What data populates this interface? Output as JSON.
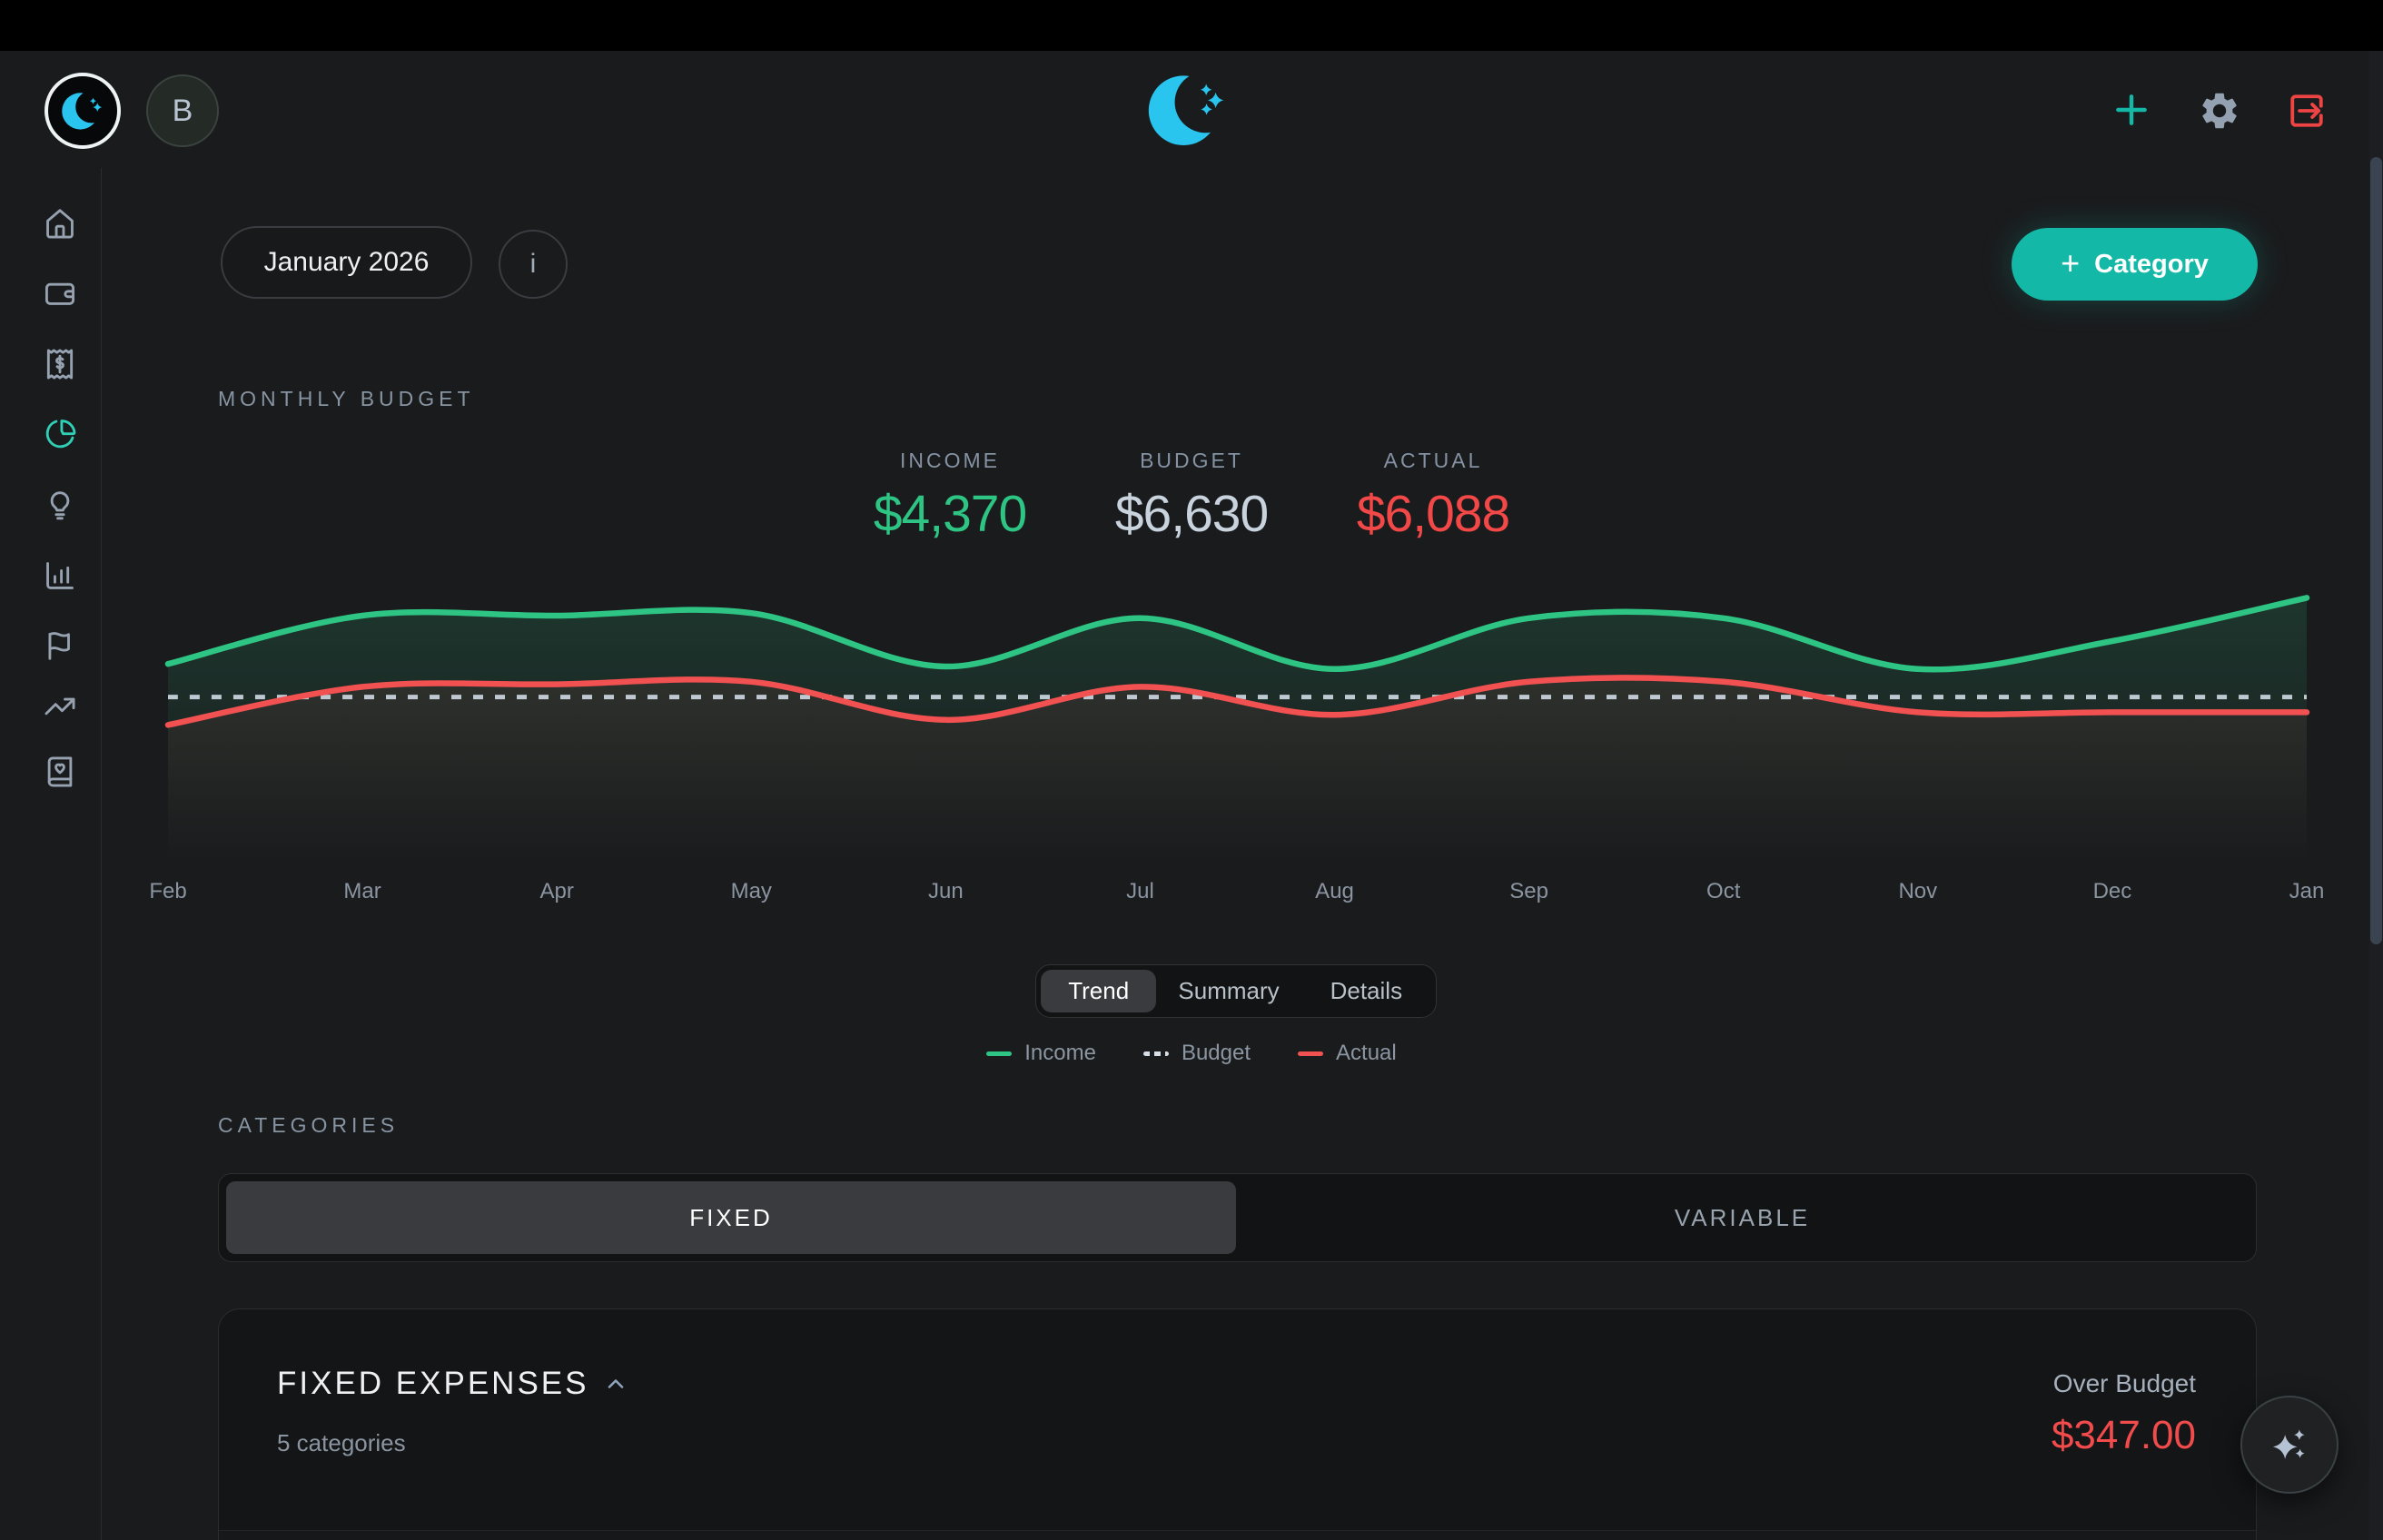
{
  "colors": {
    "accent_teal": "#14b8a6",
    "income_green": "#2ec584",
    "actual_red": "#f24848",
    "budget_gray": "#ccd6e0",
    "logo_cyan": "#29c5ef"
  },
  "topbar": {
    "logo_icon": "crescent-moon",
    "avatar_initial": "B",
    "actions": [
      {
        "icon": "plus"
      },
      {
        "icon": "gear"
      },
      {
        "icon": "logout"
      }
    ]
  },
  "sidebar": {
    "items": [
      {
        "icon": "home",
        "active": false
      },
      {
        "icon": "wallet",
        "active": false
      },
      {
        "icon": "receipt-dollar",
        "active": false
      },
      {
        "icon": "pie-chart",
        "active": true
      },
      {
        "icon": "lightbulb",
        "active": false
      },
      {
        "icon": "bar-chart",
        "active": false
      },
      {
        "icon": "flag",
        "active": false
      },
      {
        "icon": "trending-up",
        "active": false
      },
      {
        "icon": "book-heart",
        "active": false
      }
    ]
  },
  "toolbar": {
    "month_label": "January 2026",
    "info_label": "i",
    "add_category_plus": "+",
    "add_category_label": "Category"
  },
  "budget_section": {
    "title": "MONTHLY BUDGET",
    "stats": [
      {
        "label": "INCOME",
        "value": "$4,370"
      },
      {
        "label": "BUDGET",
        "value": "$6,630"
      },
      {
        "label": "ACTUAL",
        "value": "$6,088"
      }
    ],
    "view_tabs": [
      {
        "label": "Trend",
        "active": true
      },
      {
        "label": "Summary",
        "active": false
      },
      {
        "label": "Details",
        "active": false
      }
    ]
  },
  "chart_data": {
    "type": "line",
    "title": "MONTHLY BUDGET",
    "x": [
      "Feb",
      "Mar",
      "Apr",
      "May",
      "Jun",
      "Jul",
      "Aug",
      "Sep",
      "Oct",
      "Nov",
      "Dec",
      "Jan"
    ],
    "series": [
      {
        "name": "Income",
        "color": "#2ec584",
        "style": "solid",
        "values": [
          71,
          90,
          90,
          91,
          70,
          89,
          69,
          89,
          89,
          69,
          80,
          97
        ]
      },
      {
        "name": "Budget",
        "color": "#ccd6e0",
        "style": "dashed",
        "values": [
          58,
          58,
          58,
          58,
          58,
          58,
          58,
          58,
          58,
          58,
          58,
          58
        ]
      },
      {
        "name": "Actual",
        "color": "#f25151",
        "style": "solid",
        "values": [
          47,
          62,
          63,
          64,
          49,
          62,
          51,
          64,
          64,
          52,
          52,
          52
        ]
      }
    ],
    "xlabel": "",
    "ylabel": "",
    "ylim": [
      0,
      100
    ],
    "y_axis_visible": false,
    "grid": false,
    "legend_position": "below",
    "note": "y values estimated from pixel positions (no y-axis shown); current-month stats shown above chart: income $4,370, budget $6,630, actual $6,088"
  },
  "categories_section": {
    "title": "CATEGORIES",
    "type_tabs": [
      {
        "label": "FIXED",
        "active": true
      },
      {
        "label": "VARIABLE",
        "active": false
      }
    ],
    "group": {
      "name": "FIXED EXPENSES",
      "meta": "5 categories",
      "status_label": "Over Budget",
      "status_value": "$347.00"
    }
  },
  "fab": {
    "icon": "sparkles"
  }
}
